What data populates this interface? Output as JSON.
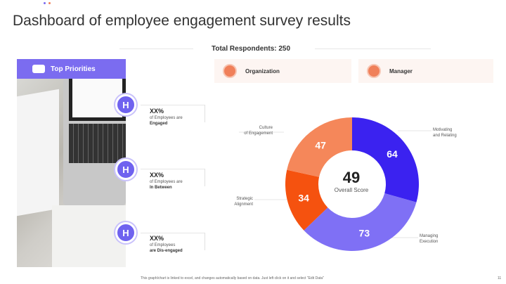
{
  "title": "Dashboard of employee engagement survey results",
  "total_respondents": "Total Respondents: 250",
  "top_priorities": {
    "label": "Top Priorities",
    "items": [
      {
        "value": "XX%",
        "line1": "of Employees are",
        "line2": "Engaged"
      },
      {
        "value": "XX%",
        "line1": "of Employees are",
        "line2": "In Between"
      },
      {
        "value": "XX%",
        "line1": "of Employees",
        "line2": "are Dis-engaged"
      }
    ]
  },
  "cards": {
    "organization": "Organization",
    "manager": "Manager"
  },
  "chart_data": {
    "type": "pie",
    "donut": true,
    "center_value": "49",
    "center_label": "Overall Score",
    "slices": [
      {
        "label": "Motivating and Relating",
        "value": 64,
        "color": "#3b22f0"
      },
      {
        "label": "Managing Execution",
        "value": 73,
        "color": "#7f70f5"
      },
      {
        "label": "Strategic Alignment",
        "value": 34,
        "color": "#f5520f"
      },
      {
        "label": "Culture of Engagement",
        "value": 47,
        "color": "#f5875a"
      }
    ],
    "label_lines": {
      "motivating": [
        "Motivating",
        "and Relating"
      ],
      "managing": [
        "Managing",
        "Execution"
      ],
      "strategic": [
        "Strategic",
        "Alignment"
      ],
      "culture": [
        "Culture",
        "of Engagement"
      ]
    }
  },
  "footer": "This graph/chart is linked to excel, and changes automatically based on data. Just left click on it and select \"Edit Data\"",
  "page_number": "11"
}
